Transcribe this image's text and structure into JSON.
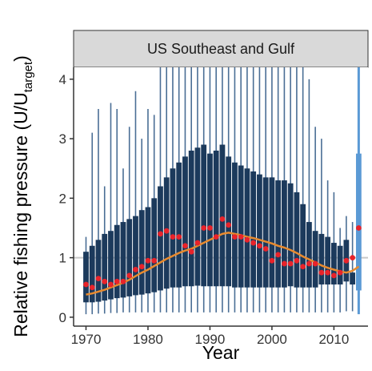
{
  "chart_data": {
    "type": "boxplot",
    "panel_title": "US Southeast and Gulf",
    "xlabel": "Year",
    "ylabel": "Relative fishing pressure (U/U",
    "ylabel_subscript": "target",
    "ylabel_close": ")",
    "xlim": [
      1968,
      2015.5
    ],
    "ylim": [
      -0.15,
      4.2
    ],
    "x_ticks": [
      1970,
      1980,
      1990,
      2000,
      2010
    ],
    "x_tick_labels": [
      "1970",
      "1980",
      "1990",
      "2000",
      "2010"
    ],
    "y_ticks": [
      0,
      1,
      2,
      3,
      4
    ],
    "y_tick_labels": [
      "0",
      "1",
      "2",
      "3",
      "4"
    ],
    "reference_line_y": 1,
    "grid": false,
    "colors": {
      "box": "#1c3a5c",
      "box_last": "#5b9ad5",
      "whisker": "#4a6e95",
      "whisker_last": "#5b9ad5",
      "trend_line": "#e88a2e",
      "points": "#e8232a",
      "reference_line": "#c8c8c8",
      "strip_bg": "#d9d9d9"
    },
    "boxes": {
      "years": [
        1970,
        1971,
        1972,
        1973,
        1974,
        1975,
        1976,
        1977,
        1978,
        1979,
        1980,
        1981,
        1982,
        1983,
        1984,
        1985,
        1986,
        1987,
        1988,
        1989,
        1990,
        1991,
        1992,
        1993,
        1994,
        1995,
        1996,
        1997,
        1998,
        1999,
        2000,
        2001,
        2002,
        2003,
        2004,
        2005,
        2006,
        2007,
        2008,
        2009,
        2010,
        2011,
        2012,
        2013,
        2014
      ],
      "q1": [
        0.25,
        0.25,
        0.26,
        0.28,
        0.3,
        0.32,
        0.33,
        0.35,
        0.37,
        0.38,
        0.4,
        0.42,
        0.45,
        0.48,
        0.5,
        0.5,
        0.52,
        0.52,
        0.53,
        0.52,
        0.52,
        0.52,
        0.52,
        0.52,
        0.5,
        0.5,
        0.5,
        0.5,
        0.5,
        0.5,
        0.5,
        0.5,
        0.5,
        0.52,
        0.5,
        0.5,
        0.5,
        0.5,
        0.55,
        0.55,
        0.55,
        0.55,
        0.6,
        0.55,
        0.45
      ],
      "q3": [
        1.1,
        1.2,
        1.3,
        1.4,
        1.45,
        1.55,
        1.6,
        1.65,
        1.7,
        1.8,
        1.85,
        2.0,
        2.2,
        2.35,
        2.5,
        2.6,
        2.7,
        2.8,
        2.85,
        2.9,
        2.75,
        2.8,
        2.9,
        2.7,
        2.6,
        2.55,
        2.5,
        2.45,
        2.4,
        2.35,
        2.35,
        2.3,
        2.3,
        2.25,
        2.1,
        1.9,
        1.6,
        1.45,
        1.4,
        1.35,
        1.25,
        1.2,
        1.3,
        0.75,
        2.75
      ],
      "whisker_low": [
        0.05,
        0.05,
        0.06,
        0.06,
        0.07,
        0.07,
        0.08,
        0.08,
        0.08,
        0.08,
        0.08,
        0.08,
        0.08,
        0.08,
        0.08,
        0.08,
        0.08,
        0.08,
        0.08,
        0.08,
        0.08,
        0.08,
        0.08,
        0.08,
        0.08,
        0.08,
        0.08,
        0.08,
        0.08,
        0.08,
        0.08,
        0.08,
        0.08,
        0.08,
        0.08,
        0.08,
        0.08,
        0.08,
        0.08,
        0.08,
        0.08,
        0.08,
        0.1,
        0.1,
        0.05
      ],
      "whisker_high": [
        1.35,
        3.1,
        3.5,
        2.2,
        3.6,
        3.5,
        2.5,
        3.2,
        3.8,
        3.0,
        3.5,
        3.4,
        4.2,
        4.2,
        4.2,
        4.2,
        4.2,
        4.2,
        4.2,
        4.2,
        4.2,
        4.2,
        4.2,
        4.2,
        4.2,
        4.2,
        4.2,
        4.2,
        4.2,
        4.2,
        4.2,
        4.2,
        4.2,
        4.2,
        4.2,
        4.2,
        4.0,
        3.2,
        3.0,
        2.3,
        2.1,
        1.5,
        1.7,
        1.6,
        4.2
      ]
    },
    "points": {
      "years": [
        1970,
        1971,
        1972,
        1973,
        1974,
        1975,
        1976,
        1977,
        1978,
        1979,
        1980,
        1981,
        1982,
        1983,
        1984,
        1985,
        1986,
        1987,
        1988,
        1989,
        1990,
        1991,
        1992,
        1993,
        1994,
        1995,
        1996,
        1997,
        1998,
        1999,
        2000,
        2001,
        2002,
        2003,
        2004,
        2005,
        2006,
        2007,
        2008,
        2009,
        2010,
        2011,
        2012,
        2013,
        2014
      ],
      "values": [
        0.55,
        0.5,
        0.65,
        0.6,
        0.55,
        0.6,
        0.6,
        0.7,
        0.8,
        0.85,
        0.95,
        0.95,
        1.4,
        1.45,
        1.35,
        1.35,
        1.2,
        1.1,
        1.25,
        1.5,
        1.5,
        1.35,
        1.65,
        1.55,
        1.35,
        1.35,
        1.3,
        1.25,
        1.2,
        1.15,
        0.95,
        1.05,
        0.9,
        0.9,
        0.95,
        0.85,
        0.9,
        0.9,
        0.75,
        0.75,
        0.7,
        0.75,
        0.95,
        1.0,
        1.5
      ]
    },
    "trend": {
      "years": [
        1970,
        1971,
        1972,
        1973,
        1974,
        1975,
        1976,
        1977,
        1978,
        1979,
        1980,
        1981,
        1982,
        1983,
        1984,
        1985,
        1986,
        1987,
        1988,
        1989,
        1990,
        1991,
        1992,
        1993,
        1994,
        1995,
        1996,
        1997,
        1998,
        1999,
        2000,
        2001,
        2002,
        2003,
        2004,
        2005,
        2006,
        2007,
        2008,
        2009,
        2010,
        2011,
        2012,
        2013,
        2014
      ],
      "values": [
        0.38,
        0.4,
        0.43,
        0.46,
        0.5,
        0.54,
        0.58,
        0.63,
        0.69,
        0.75,
        0.8,
        0.86,
        0.92,
        0.98,
        1.03,
        1.08,
        1.12,
        1.15,
        1.2,
        1.25,
        1.3,
        1.35,
        1.4,
        1.42,
        1.4,
        1.38,
        1.35,
        1.33,
        1.3,
        1.27,
        1.24,
        1.2,
        1.17,
        1.13,
        1.08,
        1.02,
        0.97,
        0.92,
        0.87,
        0.83,
        0.8,
        0.77,
        0.75,
        0.78,
        0.85
      ]
    }
  }
}
